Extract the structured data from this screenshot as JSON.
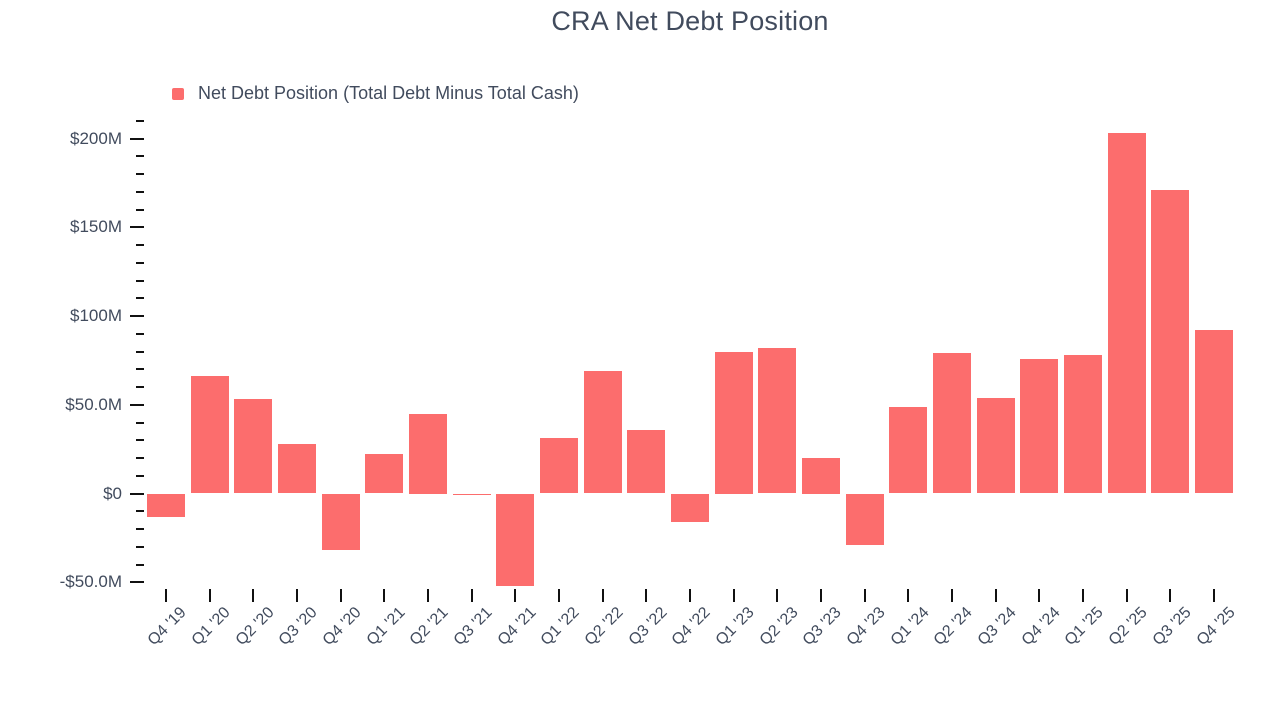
{
  "title": "CRA Net Debt Position",
  "legend": {
    "label": "Net Debt Position (Total Debt Minus Total Cash)"
  },
  "colors": {
    "bar": "#fc6d6d",
    "text": "#414b5d",
    "tick": "#111111"
  },
  "chart_data": {
    "type": "bar",
    "title": "CRA Net Debt Position",
    "series": [
      {
        "name": "Net Debt Position (Total Debt Minus Total Cash)",
        "values": [
          -13,
          66,
          53,
          28,
          -32,
          22,
          45,
          -0.8,
          -52,
          31,
          69,
          36,
          -16,
          80,
          82,
          20,
          -29,
          49,
          79,
          54,
          76,
          78,
          203,
          171,
          92
        ]
      }
    ],
    "categories": [
      "Q4 '19",
      "Q1 '20",
      "Q2 '20",
      "Q3 '20",
      "Q4 '20",
      "Q1 '21",
      "Q2 '21",
      "Q3 '21",
      "Q4 '21",
      "Q1 '22",
      "Q2 '22",
      "Q3 '22",
      "Q4 '22",
      "Q1 '23",
      "Q2 '23",
      "Q3 '23",
      "Q4 '23",
      "Q1 '24",
      "Q2 '24",
      "Q3 '24",
      "Q4 '24",
      "Q1 '25",
      "Q2 '25",
      "Q3 '25",
      "Q4 '25"
    ],
    "unit": "USD millions",
    "xlabel": "",
    "ylabel": "",
    "ylim": [
      -50,
      210
    ],
    "y_major_ticks": [
      {
        "value": 200,
        "label": "$200M"
      },
      {
        "value": 150,
        "label": "$150M"
      },
      {
        "value": 100,
        "label": "$100M"
      },
      {
        "value": 50,
        "label": "$50.0M"
      },
      {
        "value": 0,
        "label": "$0"
      },
      {
        "value": -50,
        "label": "-$50.0M"
      }
    ],
    "y_minor_step": 10,
    "grid": false,
    "legend_position": "top-left"
  }
}
